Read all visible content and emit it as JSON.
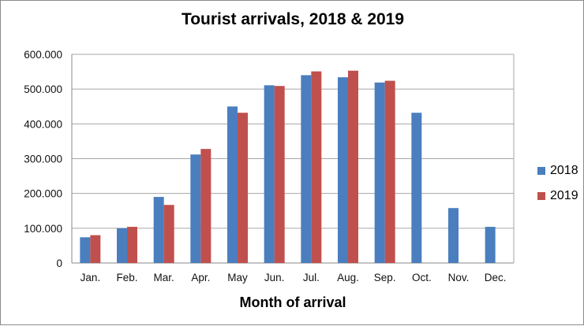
{
  "chart_data": {
    "type": "bar",
    "title": "Tourist arrivals, 2018 & 2019",
    "xlabel": "Month of arrival",
    "ylabel": "",
    "categories": [
      "Jan.",
      "Feb.",
      "Mar.",
      "Apr.",
      "May",
      "Jun.",
      "Jul.",
      "Aug.",
      "Sep.",
      "Oct.",
      "Nov.",
      "Dec."
    ],
    "series": [
      {
        "name": "2018",
        "color": "#4a7ebf",
        "values": [
          74000,
          100000,
          190000,
          312000,
          450000,
          511000,
          540000,
          534000,
          519000,
          432000,
          158000,
          104000
        ]
      },
      {
        "name": "2019",
        "color": "#c0504d",
        "values": [
          80000,
          104000,
          167000,
          328000,
          432000,
          509000,
          551000,
          553000,
          524000,
          null,
          null,
          null
        ]
      }
    ],
    "ylim": [
      0,
      600000
    ],
    "yticks": [
      0,
      100000,
      200000,
      300000,
      400000,
      500000,
      600000
    ],
    "ytick_labels": [
      "0",
      "100.000",
      "200.000",
      "300.000",
      "400.000",
      "500.000",
      "600.000"
    ],
    "grid": true,
    "legend_position": "right"
  }
}
